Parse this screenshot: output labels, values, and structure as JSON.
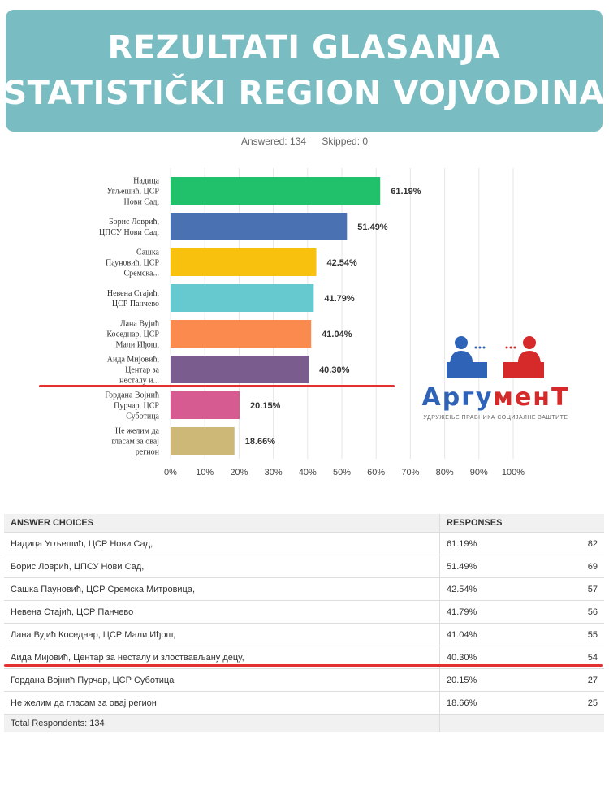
{
  "banner": {
    "line1": "REZULTATI GLASANJA",
    "line2": "STATISTIČKI REGION VOJVODINA"
  },
  "meta": {
    "answered": "Answered: 134",
    "skipped": "Skipped: 0"
  },
  "chart_data": {
    "type": "bar",
    "orientation": "horizontal",
    "categories": [
      [
        "Надица",
        "Угљешић, ЦСР",
        "Нови Сад,"
      ],
      [
        "Борис Ловрић,",
        "ЦПСУ Нови Сад,"
      ],
      [
        "Сашка",
        "Пауновић, ЦСР",
        "Сремска..."
      ],
      [
        "Невена Стајић,",
        "ЦСР Панчево"
      ],
      [
        "Лана Вујић",
        "Коседнар, ЦСР",
        "Мали Иђош,"
      ],
      [
        "Аида Мијовић,",
        "Центар за",
        "несталу и..."
      ],
      [
        "Гордана Војнић",
        "Пурчар, ЦСР",
        "Суботица"
      ],
      [
        "Не желим да",
        "гласам за овај",
        "регион"
      ]
    ],
    "values": [
      61.19,
      51.49,
      42.54,
      41.79,
      41.04,
      40.3,
      20.15,
      18.66
    ],
    "value_labels": [
      "61.19%",
      "51.49%",
      "42.54%",
      "41.79%",
      "41.04%",
      "40.30%",
      "20.15%",
      "18.66%"
    ],
    "colors": [
      "#21c16b",
      "#4a72b3",
      "#f7c10d",
      "#66c9cf",
      "#fb8a4e",
      "#7a5c8e",
      "#d65b90",
      "#cdb878"
    ],
    "xlim": [
      0,
      100
    ],
    "xticks": [
      "0%",
      "10%",
      "20%",
      "30%",
      "40%",
      "50%",
      "60%",
      "70%",
      "80%",
      "90%",
      "100%"
    ],
    "grid": true
  },
  "logo": {
    "word_part1": "Аргу",
    "word_part2": "менТ",
    "subtitle": "УДРУЖЕЊЕ ПРАВНИКА СОЦИЈАЛНЕ ЗАШТИТЕ",
    "colors": {
      "blue": "#2f63b8",
      "red": "#d62a2a"
    }
  },
  "table": {
    "headers": {
      "choices": "ANSWER CHOICES",
      "responses": "RESPONSES"
    },
    "rows": [
      {
        "choice": "Надица Угљешић, ЦСР Нови Сад,",
        "percent": "61.19%",
        "count": "82"
      },
      {
        "choice": "Борис Ловрић, ЦПСУ Нови Сад,",
        "percent": "51.49%",
        "count": "69"
      },
      {
        "choice": "Сашка Пауновић, ЦСР Сремска Митровица,",
        "percent": "42.54%",
        "count": "57"
      },
      {
        "choice": "Невена Стајић, ЦСР Панчево",
        "percent": "41.79%",
        "count": "56"
      },
      {
        "choice": "Лана Вујић Коседнар, ЦСР Мали Иђош,",
        "percent": "41.04%",
        "count": "55"
      },
      {
        "choice": "Аида Мијовић, Центар за несталу и злоствављану децу,",
        "percent": "40.30%",
        "count": "54"
      },
      {
        "choice": "Гордана Војнић Пурчар, ЦСР Суботица",
        "percent": "20.15%",
        "count": "27"
      },
      {
        "choice": "Не желим да гласам за овај регион",
        "percent": "18.66%",
        "count": "25"
      }
    ],
    "total": "Total Respondents: 134"
  },
  "highlight_color": "#e53030"
}
